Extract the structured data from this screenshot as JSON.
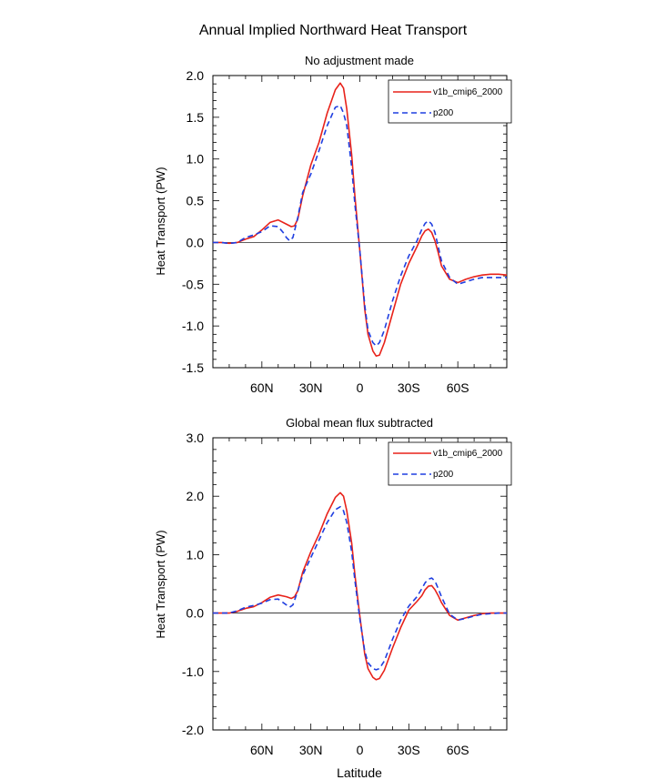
{
  "figure": {
    "title": "Annual Implied Northward Heat Transport"
  },
  "chart_data": [
    {
      "type": "line",
      "title": "No adjustment made",
      "xlabel": "",
      "ylabel": "Heat Transport (PW)",
      "xlim": [
        -90,
        90
      ],
      "xaxis_direction": "north-to-south (90N left, 90S right)",
      "ylim": [
        -1.5,
        2.0
      ],
      "yticks": [
        -1.5,
        -1.0,
        -0.5,
        0.0,
        0.5,
        1.0,
        1.5,
        2.0
      ],
      "ytick_labels": [
        "-1.5",
        "-1.0",
        "-0.5",
        "0.0",
        "0.5",
        "1.0",
        "1.5",
        "2.0"
      ],
      "xticks": [
        60,
        30,
        0,
        -30,
        -60
      ],
      "xtick_labels": [
        "60N",
        "30N",
        "0",
        "30S",
        "60S"
      ],
      "zero_line": true,
      "legend_position": "top-right",
      "series": [
        {
          "name": "v1b_cmip6_2000",
          "color": "#e8221a",
          "dash": "solid",
          "x": [
            90,
            85,
            80,
            75,
            70,
            65,
            60,
            55,
            50,
            45,
            42,
            40,
            38,
            35,
            30,
            25,
            20,
            15,
            12,
            10,
            8,
            5,
            3,
            0,
            -3,
            -5,
            -8,
            -10,
            -12,
            -15,
            -20,
            -25,
            -30,
            -35,
            -38,
            -40,
            -42,
            -44,
            -46,
            -48,
            -50,
            -55,
            -60,
            -65,
            -70,
            -75,
            -80,
            -85,
            -90
          ],
          "y": [
            0.0,
            0.0,
            -0.01,
            0.0,
            0.04,
            0.07,
            0.15,
            0.24,
            0.27,
            0.22,
            0.19,
            0.2,
            0.28,
            0.56,
            0.93,
            1.2,
            1.55,
            1.83,
            1.91,
            1.85,
            1.6,
            1.05,
            0.55,
            -0.1,
            -0.8,
            -1.1,
            -1.3,
            -1.36,
            -1.35,
            -1.2,
            -0.85,
            -0.5,
            -0.25,
            -0.05,
            0.08,
            0.14,
            0.16,
            0.12,
            0.02,
            -0.12,
            -0.28,
            -0.44,
            -0.48,
            -0.44,
            -0.41,
            -0.39,
            -0.38,
            -0.38,
            -0.39
          ]
        },
        {
          "name": "p200",
          "color": "#1f3ee0",
          "dash": "dashed",
          "x": [
            90,
            85,
            80,
            75,
            70,
            65,
            60,
            55,
            50,
            47,
            45,
            43,
            41,
            38,
            35,
            30,
            25,
            20,
            15,
            12,
            10,
            8,
            5,
            3,
            0,
            -3,
            -5,
            -8,
            -10,
            -12,
            -15,
            -20,
            -25,
            -30,
            -35,
            -38,
            -40,
            -42,
            -44,
            -46,
            -48,
            -50,
            -55,
            -60,
            -65,
            -70,
            -75,
            -80,
            -85,
            -90
          ],
          "y": [
            0.0,
            0.0,
            -0.01,
            0.0,
            0.06,
            0.09,
            0.13,
            0.2,
            0.19,
            0.12,
            0.06,
            0.02,
            0.06,
            0.3,
            0.6,
            0.82,
            1.1,
            1.4,
            1.62,
            1.64,
            1.55,
            1.4,
            0.9,
            0.45,
            -0.1,
            -0.75,
            -1.05,
            -1.2,
            -1.24,
            -1.2,
            -1.05,
            -0.7,
            -0.4,
            -0.16,
            0.02,
            0.16,
            0.23,
            0.26,
            0.22,
            0.12,
            -0.05,
            -0.22,
            -0.42,
            -0.5,
            -0.47,
            -0.44,
            -0.42,
            -0.42,
            -0.42,
            -0.42
          ]
        }
      ]
    },
    {
      "type": "line",
      "title": "Global mean flux subtracted",
      "xlabel": "Latitude",
      "ylabel": "Heat Transport (PW)",
      "xlim": [
        -90,
        90
      ],
      "xaxis_direction": "north-to-south (90N left, 90S right)",
      "ylim": [
        -2.0,
        3.0
      ],
      "yticks": [
        -2.0,
        -1.0,
        0.0,
        1.0,
        2.0,
        3.0
      ],
      "ytick_labels": [
        "-2.0",
        "-1.0",
        "0.0",
        "1.0",
        "2.0",
        "3.0"
      ],
      "xticks": [
        60,
        30,
        0,
        -30,
        -60
      ],
      "xtick_labels": [
        "60N",
        "30N",
        "0",
        "30S",
        "60S"
      ],
      "zero_line": true,
      "legend_position": "top-right",
      "series": [
        {
          "name": "v1b_cmip6_2000",
          "color": "#e8221a",
          "dash": "solid",
          "x": [
            90,
            85,
            80,
            75,
            70,
            65,
            60,
            55,
            50,
            45,
            42,
            40,
            38,
            35,
            30,
            25,
            20,
            15,
            12,
            10,
            8,
            5,
            3,
            0,
            -3,
            -5,
            -8,
            -10,
            -12,
            -15,
            -20,
            -25,
            -30,
            -35,
            -38,
            -40,
            -42,
            -44,
            -46,
            -48,
            -50,
            -55,
            -60,
            -65,
            -70,
            -75,
            -80,
            -85,
            -90
          ],
          "y": [
            0.0,
            0.0,
            0.0,
            0.03,
            0.08,
            0.11,
            0.18,
            0.27,
            0.31,
            0.28,
            0.25,
            0.28,
            0.38,
            0.7,
            1.05,
            1.35,
            1.7,
            1.98,
            2.06,
            2.0,
            1.75,
            1.2,
            0.65,
            -0.05,
            -0.7,
            -0.95,
            -1.1,
            -1.14,
            -1.12,
            -0.98,
            -0.6,
            -0.25,
            0.05,
            0.2,
            0.3,
            0.4,
            0.46,
            0.47,
            0.4,
            0.3,
            0.18,
            -0.04,
            -0.12,
            -0.08,
            -0.04,
            -0.01,
            0.0,
            0.0,
            0.0
          ]
        },
        {
          "name": "p200",
          "color": "#1f3ee0",
          "dash": "dashed",
          "x": [
            90,
            85,
            80,
            75,
            70,
            65,
            60,
            55,
            50,
            47,
            45,
            43,
            41,
            38,
            35,
            30,
            25,
            20,
            15,
            12,
            10,
            8,
            5,
            3,
            0,
            -3,
            -5,
            -8,
            -10,
            -12,
            -15,
            -20,
            -25,
            -30,
            -35,
            -38,
            -40,
            -42,
            -44,
            -46,
            -48,
            -50,
            -55,
            -60,
            -65,
            -70,
            -75,
            -80,
            -85,
            -90
          ],
          "y": [
            0.0,
            0.0,
            0.0,
            0.04,
            0.1,
            0.13,
            0.17,
            0.23,
            0.24,
            0.18,
            0.14,
            0.1,
            0.14,
            0.38,
            0.65,
            0.95,
            1.25,
            1.55,
            1.77,
            1.82,
            1.75,
            1.55,
            1.05,
            0.55,
            -0.1,
            -0.65,
            -0.85,
            -0.95,
            -0.97,
            -0.95,
            -0.82,
            -0.45,
            -0.12,
            0.12,
            0.28,
            0.42,
            0.52,
            0.58,
            0.6,
            0.55,
            0.42,
            0.28,
            -0.02,
            -0.12,
            -0.09,
            -0.05,
            -0.02,
            -0.01,
            0.0,
            0.0
          ]
        }
      ]
    }
  ]
}
